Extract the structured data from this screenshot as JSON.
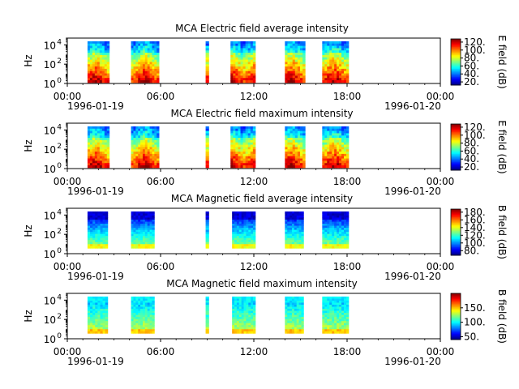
{
  "chart_data": [
    {
      "type": "heatmap",
      "title": "MCA  Electric field average intensity",
      "ylabel": "Hz",
      "yscale": "log",
      "yticks": [
        {
          "v": 0,
          "base": "10",
          "exp": "0"
        },
        {
          "v": 2,
          "base": "10",
          "exp": "2"
        },
        {
          "v": 4,
          "base": "10",
          "exp": "4"
        }
      ],
      "ylim_log10": [
        0,
        4.7
      ],
      "xlim_hours": [
        0,
        24
      ],
      "xticks": [
        {
          "h": 0,
          "label": "00:00"
        },
        {
          "h": 6,
          "label": "06:00"
        },
        {
          "h": 12,
          "label": "12:00"
        },
        {
          "h": 18,
          "label": "18:00"
        },
        {
          "h": 24,
          "label": "00:00"
        }
      ],
      "date_left": "1996-01-19",
      "date_right": "1996-01-20",
      "colorbar_label": "E field (dB)",
      "colorbar_ticks": [
        {
          "v": 20,
          "label": "20."
        },
        {
          "v": 40,
          "label": "40."
        },
        {
          "v": 60,
          "label": "60."
        },
        {
          "v": 80,
          "label": "80."
        },
        {
          "v": 100,
          "label": "100."
        },
        {
          "v": 120,
          "label": "120."
        }
      ],
      "zlim": [
        12,
        128
      ],
      "pattern": "electric",
      "data_intervals_hours": [
        [
          1.3,
          2.7
        ],
        [
          4.1,
          5.9
        ],
        [
          8.9,
          9.1
        ],
        [
          10.5,
          12.1
        ],
        [
          14.0,
          15.3
        ],
        [
          16.4,
          18.1
        ]
      ]
    },
    {
      "type": "heatmap",
      "title": "MCA  Electric field maximum intensity",
      "ylabel": "Hz",
      "yscale": "log",
      "yticks": [
        {
          "v": 0,
          "base": "10",
          "exp": "0"
        },
        {
          "v": 2,
          "base": "10",
          "exp": "2"
        },
        {
          "v": 4,
          "base": "10",
          "exp": "4"
        }
      ],
      "ylim_log10": [
        0,
        4.7
      ],
      "xlim_hours": [
        0,
        24
      ],
      "xticks": [
        {
          "h": 0,
          "label": "00:00"
        },
        {
          "h": 6,
          "label": "06:00"
        },
        {
          "h": 12,
          "label": "12:00"
        },
        {
          "h": 18,
          "label": "18:00"
        },
        {
          "h": 24,
          "label": "00:00"
        }
      ],
      "date_left": "1996-01-19",
      "date_right": "1996-01-20",
      "colorbar_label": "E field (dB)",
      "colorbar_ticks": [
        {
          "v": 20,
          "label": "20."
        },
        {
          "v": 40,
          "label": "40."
        },
        {
          "v": 60,
          "label": "60."
        },
        {
          "v": 80,
          "label": "80."
        },
        {
          "v": 100,
          "label": "100."
        },
        {
          "v": 120,
          "label": "120."
        }
      ],
      "zlim": [
        12,
        128
      ],
      "pattern": "electric",
      "data_intervals_hours": [
        [
          1.3,
          2.7
        ],
        [
          4.1,
          5.9
        ],
        [
          8.9,
          9.1
        ],
        [
          10.5,
          12.1
        ],
        [
          14.0,
          15.3
        ],
        [
          16.4,
          18.1
        ]
      ]
    },
    {
      "type": "heatmap",
      "title": "MCA  Magnetic field average intensity",
      "ylabel": "Hz",
      "yscale": "log",
      "yticks": [
        {
          "v": 0,
          "base": "10",
          "exp": "0"
        },
        {
          "v": 2,
          "base": "10",
          "exp": "2"
        },
        {
          "v": 4,
          "base": "10",
          "exp": "4"
        }
      ],
      "ylim_log10": [
        0,
        4.7
      ],
      "xlim_hours": [
        0,
        24
      ],
      "xticks": [
        {
          "h": 0,
          "label": "00:00"
        },
        {
          "h": 6,
          "label": "06:00"
        },
        {
          "h": 12,
          "label": "12:00"
        },
        {
          "h": 18,
          "label": "18:00"
        },
        {
          "h": 24,
          "label": "00:00"
        }
      ],
      "date_left": "1996-01-19",
      "date_right": "1996-01-20",
      "colorbar_label": "B field (dB)",
      "colorbar_ticks": [
        {
          "v": 80,
          "label": "80."
        },
        {
          "v": 100,
          "label": "100."
        },
        {
          "v": 120,
          "label": "120."
        },
        {
          "v": 140,
          "label": "140."
        },
        {
          "v": 160,
          "label": "160."
        },
        {
          "v": 180,
          "label": "180."
        }
      ],
      "zlim": [
        68,
        188
      ],
      "pattern": "magnetic",
      "data_intervals_hours": [
        [
          1.3,
          2.6
        ],
        [
          4.1,
          5.6
        ],
        [
          8.9,
          9.1
        ],
        [
          10.6,
          12.1
        ],
        [
          14.0,
          15.2
        ],
        [
          16.4,
          18.1
        ]
      ]
    },
    {
      "type": "heatmap",
      "title": "MCA  Magnetic field maximum intensity",
      "ylabel": "Hz",
      "yscale": "log",
      "yticks": [
        {
          "v": 0,
          "base": "10",
          "exp": "0"
        },
        {
          "v": 2,
          "base": "10",
          "exp": "2"
        },
        {
          "v": 4,
          "base": "10",
          "exp": "4"
        }
      ],
      "ylim_log10": [
        0,
        4.7
      ],
      "xlim_hours": [
        0,
        24
      ],
      "xticks": [
        {
          "h": 0,
          "label": "00:00"
        },
        {
          "h": 6,
          "label": "06:00"
        },
        {
          "h": 12,
          "label": "12:00"
        },
        {
          "h": 18,
          "label": "18:00"
        },
        {
          "h": 24,
          "label": "00:00"
        }
      ],
      "date_left": "1996-01-19",
      "date_right": "1996-01-20",
      "colorbar_label": "B field (dB)",
      "colorbar_ticks": [
        {
          "v": 50,
          "label": "50."
        },
        {
          "v": 100,
          "label": "100."
        },
        {
          "v": 150,
          "label": "150."
        }
      ],
      "zlim": [
        40,
        200
      ],
      "pattern": "magnetic_max",
      "data_intervals_hours": [
        [
          1.3,
          2.6
        ],
        [
          4.1,
          5.6
        ],
        [
          8.9,
          9.1
        ],
        [
          10.6,
          12.1
        ],
        [
          14.0,
          15.2
        ],
        [
          16.4,
          18.1
        ]
      ]
    }
  ]
}
